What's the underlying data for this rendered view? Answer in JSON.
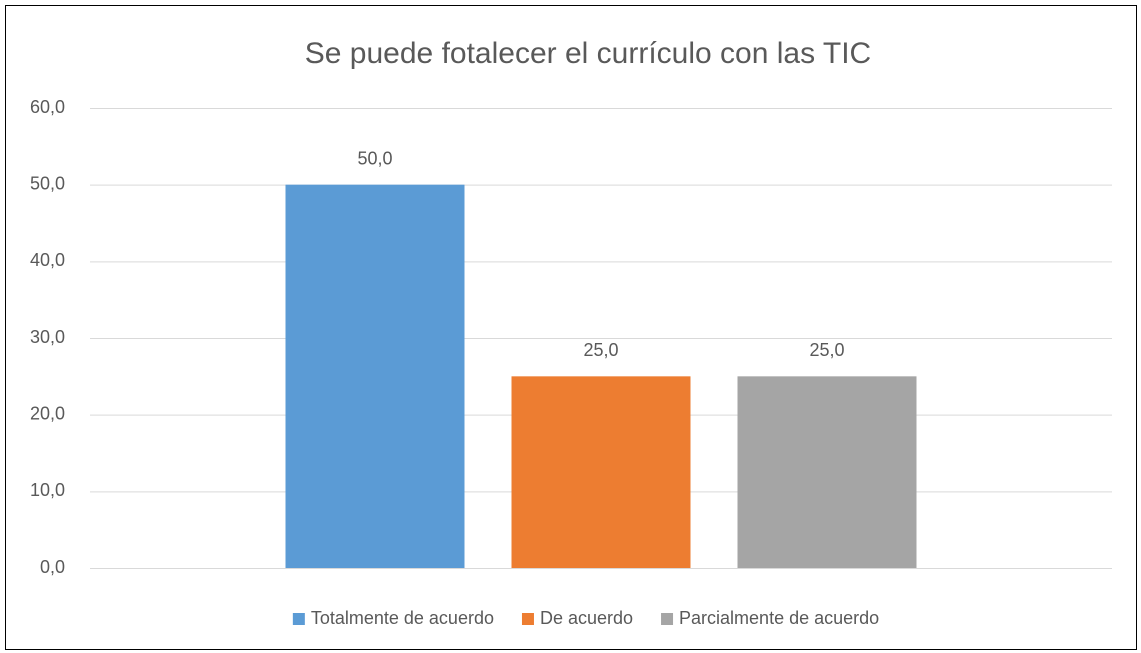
{
  "chart_data": {
    "type": "bar",
    "title": "Se puede fotalecer el currículo con las TIC",
    "categories": [
      null
    ],
    "series": [
      {
        "name": "Totalmente de acuerdo",
        "color": "#5b9bd5",
        "values": [
          50
        ],
        "value_labels": [
          "50,0"
        ]
      },
      {
        "name": "De acuerdo",
        "color": "#ed7d31",
        "values": [
          25
        ],
        "value_labels": [
          "25,0"
        ]
      },
      {
        "name": "Parcialmente de acuerdo",
        "color": "#a5a5a5",
        "values": [
          25
        ],
        "value_labels": [
          "25,0"
        ]
      }
    ],
    "ylim": [
      0,
      60
    ],
    "yticks": [
      {
        "value": 0,
        "label": "0,0"
      },
      {
        "value": 10,
        "label": "10,0"
      },
      {
        "value": 20,
        "label": "20,0"
      },
      {
        "value": 30,
        "label": "30,0"
      },
      {
        "value": 40,
        "label": "40,0"
      },
      {
        "value": 50,
        "label": "50,0"
      },
      {
        "value": 60,
        "label": "60,0"
      }
    ],
    "grid": true,
    "legend": "bottom"
  }
}
